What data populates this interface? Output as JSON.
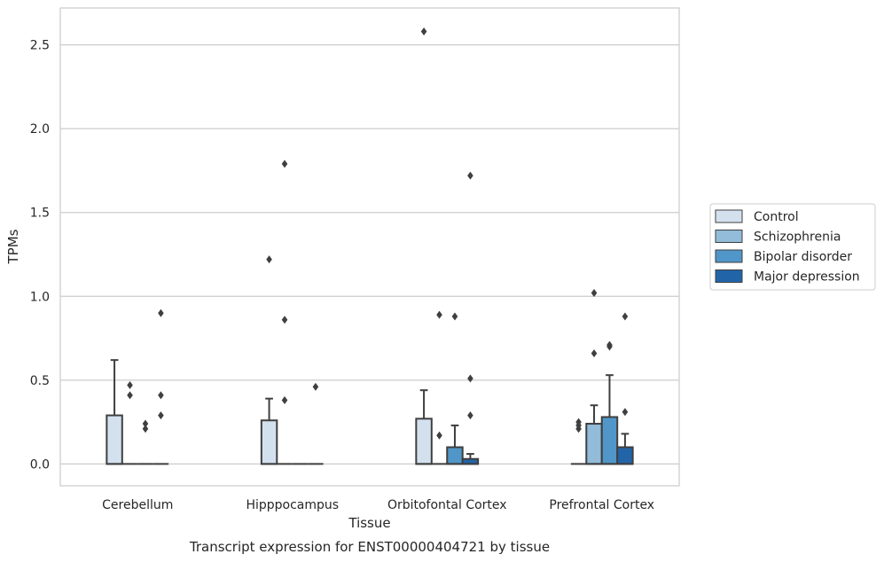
{
  "chart_data": {
    "type": "box",
    "caption": "Transcript expression for ENST00000404721 by tissue",
    "xlabel": "Tissue",
    "ylabel": "TPMs",
    "ylim": [
      -0.13,
      2.72
    ],
    "yticks": [
      "0.0",
      "0.5",
      "1.0",
      "1.5",
      "2.0",
      "2.5"
    ],
    "ytick_values": [
      0.0,
      0.5,
      1.0,
      1.5,
      2.0,
      2.5
    ],
    "categories": [
      "Cerebellum",
      "Hipppocampus",
      "Orbitofontal Cortex",
      "Prefrontal Cortex"
    ],
    "grid": "horizontal",
    "legend_position": "right",
    "series": [
      {
        "name": "Control",
        "color": "#d3e1ef",
        "boxes": [
          {
            "q1": 0.0,
            "q3": 0.29,
            "median": 0.0,
            "whisker_low": 0.0,
            "whisker_high": 0.62,
            "outliers": []
          },
          {
            "q1": 0.0,
            "q3": 0.26,
            "median": 0.0,
            "whisker_low": 0.0,
            "whisker_high": 0.39,
            "outliers": [
              1.22
            ]
          },
          {
            "q1": 0.0,
            "q3": 0.27,
            "median": 0.0,
            "whisker_low": 0.0,
            "whisker_high": 0.44,
            "outliers": [
              2.58
            ]
          },
          {
            "q1": 0.0,
            "q3": 0.0,
            "median": 0.0,
            "whisker_low": 0.0,
            "whisker_high": 0.0,
            "outliers": [
              0.21,
              0.23,
              0.25
            ]
          }
        ]
      },
      {
        "name": "Schizophrenia",
        "color": "#92bcd9",
        "boxes": [
          {
            "q1": 0.0,
            "q3": 0.0,
            "median": 0.0,
            "whisker_low": 0.0,
            "whisker_high": 0.0,
            "outliers": [
              0.41,
              0.47
            ]
          },
          {
            "q1": 0.0,
            "q3": 0.0,
            "median": 0.0,
            "whisker_low": 0.0,
            "whisker_high": 0.0,
            "outliers": [
              1.79,
              0.86,
              0.38
            ]
          },
          {
            "q1": 0.0,
            "q3": 0.0,
            "median": 0.0,
            "whisker_low": 0.0,
            "whisker_high": 0.0,
            "outliers": [
              0.89,
              0.17
            ]
          },
          {
            "q1": 0.0,
            "q3": 0.24,
            "median": 0.0,
            "whisker_low": 0.0,
            "whisker_high": 0.35,
            "outliers": [
              1.02,
              0.66
            ]
          }
        ]
      },
      {
        "name": "Bipolar disorder",
        "color": "#5196c8",
        "boxes": [
          {
            "q1": 0.0,
            "q3": 0.0,
            "median": 0.0,
            "whisker_low": 0.0,
            "whisker_high": 0.0,
            "outliers": [
              0.21,
              0.24
            ]
          },
          {
            "q1": 0.0,
            "q3": 0.0,
            "median": 0.0,
            "whisker_low": 0.0,
            "whisker_high": 0.0,
            "outliers": []
          },
          {
            "q1": 0.0,
            "q3": 0.1,
            "median": 0.0,
            "whisker_low": 0.0,
            "whisker_high": 0.23,
            "outliers": [
              0.88
            ]
          },
          {
            "q1": 0.0,
            "q3": 0.28,
            "median": 0.0,
            "whisker_low": 0.0,
            "whisker_high": 0.53,
            "outliers": [
              0.7,
              0.71
            ]
          }
        ]
      },
      {
        "name": "Major depression",
        "color": "#2264a8",
        "boxes": [
          {
            "q1": 0.0,
            "q3": 0.0,
            "median": 0.0,
            "whisker_low": 0.0,
            "whisker_high": 0.0,
            "outliers": [
              0.9,
              0.41,
              0.29
            ]
          },
          {
            "q1": 0.0,
            "q3": 0.0,
            "median": 0.0,
            "whisker_low": 0.0,
            "whisker_high": 0.0,
            "outliers": [
              0.46
            ]
          },
          {
            "q1": 0.0,
            "q3": 0.03,
            "median": 0.0,
            "whisker_low": 0.0,
            "whisker_high": 0.06,
            "outliers": [
              1.72,
              0.51,
              0.29
            ]
          },
          {
            "q1": 0.0,
            "q3": 0.1,
            "median": 0.0,
            "whisker_low": 0.0,
            "whisker_high": 0.18,
            "outliers": [
              0.88,
              0.31
            ]
          }
        ]
      }
    ]
  }
}
